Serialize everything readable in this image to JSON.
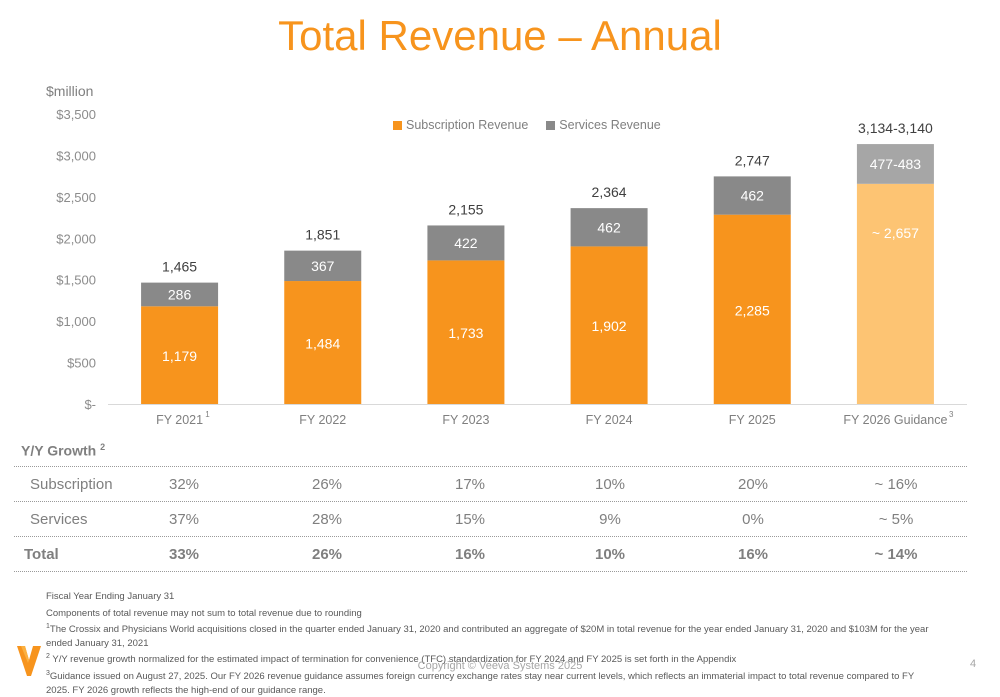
{
  "page": {
    "title": "Total Revenue – Annual",
    "unit_label": "$million",
    "copyright": "Copyright © Veeva Systems 2025",
    "page_number": "4",
    "brand_color": "#f7941d",
    "logo": "veeva-v-logo"
  },
  "chart_data": {
    "type": "bar",
    "stacked": true,
    "title": "Total Revenue – Annual",
    "ylabel": "$million",
    "xlabel": "",
    "ylim": [
      0,
      3500
    ],
    "yticks": [
      0,
      500,
      1000,
      1500,
      2000,
      2500,
      3000,
      3500
    ],
    "ytick_labels": [
      "$-",
      "$500",
      "$1,000",
      "$1,500",
      "$2,000",
      "$2,500",
      "$3,000",
      "$3,500"
    ],
    "grid": false,
    "legend_position": "top-center",
    "categories": [
      "FY 2021",
      "FY 2022",
      "FY 2023",
      "FY 2024",
      "FY 2025",
      "FY 2026 Guidance"
    ],
    "category_footnotes": [
      "1",
      "",
      "",
      "",
      "",
      "3"
    ],
    "series": [
      {
        "name": "Subscription Revenue",
        "color": "#f7941d",
        "guidance_color": "#fdc473",
        "values": [
          1179,
          1484,
          1733,
          1902,
          2285,
          2657
        ],
        "labels": [
          "1,179",
          "1,484",
          "1,733",
          "1,902",
          "2,285",
          "~ 2,657"
        ]
      },
      {
        "name": "Services Revenue",
        "color": "#898989",
        "guidance_color": "#a6a6a6",
        "values": [
          286,
          367,
          422,
          462,
          462,
          480
        ],
        "labels": [
          "286",
          "367",
          "422",
          "462",
          "462",
          "477-483"
        ]
      }
    ],
    "totals": [
      1465,
      1851,
      2155,
      2364,
      2747,
      3140
    ],
    "total_labels": [
      "1,465",
      "1,851",
      "2,155",
      "2,364",
      "2,747",
      "3,134-3,140"
    ]
  },
  "growth": {
    "title": "Y/Y Growth",
    "title_footnote": "2",
    "rows": [
      {
        "label": "Subscription",
        "values": [
          "32%",
          "26%",
          "17%",
          "10%",
          "20%",
          "~ 16%"
        ]
      },
      {
        "label": "Services",
        "values": [
          "37%",
          "28%",
          "15%",
          "9%",
          "0%",
          "~ 5%"
        ]
      },
      {
        "label": "Total",
        "values": [
          "33%",
          "26%",
          "16%",
          "10%",
          "16%",
          "~ 14%"
        ]
      }
    ]
  },
  "footnotes": [
    {
      "sup": "",
      "text": "Fiscal Year Ending January 31"
    },
    {
      "sup": "",
      "text": "Components of total revenue may not sum to total revenue due to rounding"
    },
    {
      "sup": "1",
      "text": "The Crossix and Physicians World acquisitions closed in the quarter ended January 31, 2020 and contributed an aggregate of $20M in total revenue for the year ended January 31, 2020 and $103M for the year ended January 31, 2021"
    },
    {
      "sup": "2",
      "text": " Y/Y revenue growth normalized for the estimated impact of termination for convenience (TFC) standardization for FY 2024 and FY 2025 is set forth in the Appendix"
    },
    {
      "sup": "3",
      "text": "Guidance issued on August 27, 2025. Our FY 2026 revenue guidance assumes foreign currency exchange rates stay near current levels, which reflects an immaterial impact to total revenue compared to FY 2025. FY 2026 growth reflects the high-end of our guidance range."
    }
  ]
}
